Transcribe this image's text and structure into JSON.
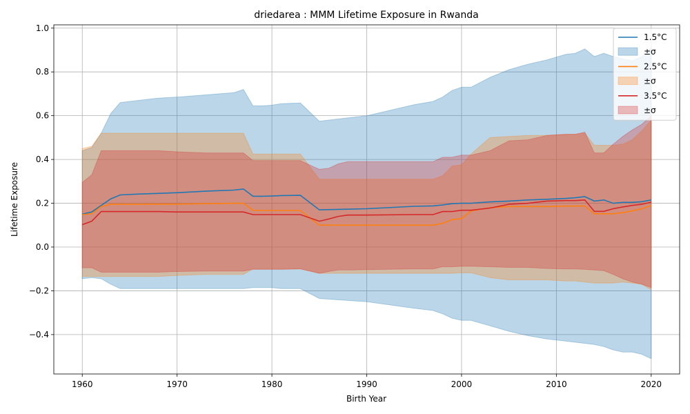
{
  "chart_data": {
    "type": "line",
    "title": "driedarea : MMM Lifetime Exposure in Rwanda",
    "xlabel": "Birth Year",
    "ylabel": "Lifetime Exposure",
    "xlim": [
      1957,
      2023
    ],
    "ylim": [
      -0.58,
      1.015
    ],
    "xticks": [
      1960,
      1970,
      1980,
      1990,
      2000,
      2010,
      2020
    ],
    "yticks": [
      -0.4,
      -0.2,
      0.0,
      0.2,
      0.4,
      0.6,
      0.8,
      1.0
    ],
    "xtick_labels": [
      "1960",
      "1970",
      "1980",
      "1990",
      "2000",
      "2010",
      "2020"
    ],
    "ytick_labels": [
      "−0.4",
      "−0.2",
      "0.0",
      "0.2",
      "0.4",
      "0.6",
      "0.8",
      "1.0"
    ],
    "grid": true,
    "legend_position": "top-right",
    "series": [
      {
        "name": "1.5°C",
        "band_name": "±σ",
        "color": "#1f77b4",
        "x": [
          1960,
          1961,
          1962,
          1963,
          1964,
          1966,
          1968,
          1970,
          1973,
          1976,
          1977,
          1978,
          1979,
          1980,
          1981,
          1983,
          1985,
          1990,
          1995,
          1997,
          1998,
          1999,
          2000,
          2001,
          2003,
          2005,
          2007,
          2009,
          2011,
          2012,
          2013,
          2014,
          2015,
          2016,
          2017,
          2018,
          2019,
          2020
        ],
        "y": [
          0.15,
          0.16,
          0.19,
          0.22,
          0.238,
          0.242,
          0.245,
          0.248,
          0.255,
          0.26,
          0.265,
          0.232,
          0.232,
          0.233,
          0.235,
          0.236,
          0.17,
          0.175,
          0.186,
          0.188,
          0.192,
          0.198,
          0.2,
          0.2,
          0.206,
          0.21,
          0.215,
          0.218,
          0.222,
          0.225,
          0.23,
          0.21,
          0.215,
          0.2,
          0.204,
          0.204,
          0.207,
          0.215
        ],
        "upper": [
          0.44,
          0.455,
          0.52,
          0.61,
          0.66,
          0.67,
          0.68,
          0.685,
          0.695,
          0.705,
          0.72,
          0.645,
          0.645,
          0.648,
          0.655,
          0.658,
          0.575,
          0.6,
          0.65,
          0.665,
          0.685,
          0.715,
          0.73,
          0.73,
          0.775,
          0.81,
          0.835,
          0.855,
          0.88,
          0.885,
          0.905,
          0.87,
          0.885,
          0.87,
          0.86,
          0.85,
          0.87,
          0.91
        ],
        "lower": [
          -0.145,
          -0.14,
          -0.145,
          -0.17,
          -0.19,
          -0.19,
          -0.19,
          -0.19,
          -0.19,
          -0.19,
          -0.19,
          -0.185,
          -0.185,
          -0.185,
          -0.19,
          -0.19,
          -0.235,
          -0.25,
          -0.28,
          -0.29,
          -0.305,
          -0.325,
          -0.335,
          -0.335,
          -0.36,
          -0.385,
          -0.405,
          -0.42,
          -0.43,
          -0.435,
          -0.44,
          -0.445,
          -0.455,
          -0.47,
          -0.48,
          -0.48,
          -0.49,
          -0.51
        ]
      },
      {
        "name": "2.5°C",
        "band_name": "±σ",
        "color": "#ff7f0e",
        "x": [
          1960,
          1961,
          1962,
          1963,
          1964,
          1966,
          1968,
          1970,
          1973,
          1976,
          1977,
          1978,
          1979,
          1980,
          1981,
          1983,
          1985,
          1990,
          1995,
          1997,
          1998,
          1999,
          2000,
          2001,
          2003,
          2005,
          2007,
          2009,
          2011,
          2012,
          2013,
          2014,
          2015,
          2016,
          2017,
          2018,
          2019,
          2020
        ],
        "y": [
          0.148,
          0.152,
          0.185,
          0.195,
          0.195,
          0.195,
          0.196,
          0.196,
          0.198,
          0.2,
          0.2,
          0.168,
          0.167,
          0.167,
          0.167,
          0.167,
          0.1,
          0.1,
          0.1,
          0.1,
          0.108,
          0.125,
          0.13,
          0.165,
          0.18,
          0.185,
          0.185,
          0.185,
          0.187,
          0.187,
          0.188,
          0.152,
          0.152,
          0.152,
          0.157,
          0.165,
          0.175,
          0.19
        ],
        "upper": [
          0.45,
          0.46,
          0.52,
          0.52,
          0.52,
          0.52,
          0.52,
          0.52,
          0.52,
          0.52,
          0.52,
          0.425,
          0.425,
          0.425,
          0.425,
          0.425,
          0.31,
          0.31,
          0.31,
          0.31,
          0.325,
          0.37,
          0.375,
          0.425,
          0.5,
          0.505,
          0.51,
          0.51,
          0.515,
          0.515,
          0.52,
          0.465,
          0.465,
          0.465,
          0.47,
          0.49,
          0.53,
          0.58
        ],
        "lower": [
          -0.135,
          -0.135,
          -0.135,
          -0.135,
          -0.135,
          -0.135,
          -0.135,
          -0.13,
          -0.125,
          -0.125,
          -0.125,
          -0.1,
          -0.1,
          -0.1,
          -0.1,
          -0.1,
          -0.12,
          -0.12,
          -0.12,
          -0.12,
          -0.12,
          -0.12,
          -0.118,
          -0.118,
          -0.14,
          -0.15,
          -0.15,
          -0.15,
          -0.155,
          -0.155,
          -0.16,
          -0.165,
          -0.165,
          -0.165,
          -0.16,
          -0.165,
          -0.17,
          -0.195
        ]
      },
      {
        "name": "3.5°C",
        "band_name": "±σ",
        "color": "#d62728",
        "x": [
          1960,
          1961,
          1962,
          1963,
          1964,
          1966,
          1968,
          1970,
          1973,
          1976,
          1977,
          1978,
          1979,
          1980,
          1981,
          1983,
          1985,
          1986,
          1987,
          1988,
          1990,
          1995,
          1997,
          1998,
          1999,
          2000,
          2001,
          2003,
          2005,
          2007,
          2009,
          2011,
          2012,
          2013,
          2014,
          2015,
          2016,
          2017,
          2018,
          2019,
          2020
        ],
        "y": [
          0.102,
          0.118,
          0.162,
          0.162,
          0.162,
          0.162,
          0.162,
          0.16,
          0.16,
          0.16,
          0.16,
          0.148,
          0.148,
          0.148,
          0.148,
          0.148,
          0.118,
          0.128,
          0.14,
          0.146,
          0.146,
          0.148,
          0.148,
          0.162,
          0.162,
          0.168,
          0.168,
          0.178,
          0.195,
          0.2,
          0.21,
          0.212,
          0.212,
          0.215,
          0.163,
          0.163,
          0.175,
          0.183,
          0.19,
          0.195,
          0.205
        ],
        "upper": [
          0.295,
          0.33,
          0.44,
          0.44,
          0.44,
          0.44,
          0.44,
          0.435,
          0.43,
          0.43,
          0.43,
          0.395,
          0.395,
          0.395,
          0.395,
          0.395,
          0.355,
          0.36,
          0.38,
          0.39,
          0.39,
          0.39,
          0.39,
          0.41,
          0.41,
          0.42,
          0.42,
          0.44,
          0.485,
          0.49,
          0.51,
          0.515,
          0.515,
          0.525,
          0.43,
          0.43,
          0.47,
          0.505,
          0.535,
          0.56,
          0.6
        ],
        "lower": [
          -0.095,
          -0.095,
          -0.115,
          -0.115,
          -0.115,
          -0.115,
          -0.115,
          -0.112,
          -0.11,
          -0.11,
          -0.11,
          -0.102,
          -0.102,
          -0.102,
          -0.102,
          -0.1,
          -0.12,
          -0.112,
          -0.105,
          -0.105,
          -0.103,
          -0.1,
          -0.1,
          -0.09,
          -0.09,
          -0.088,
          -0.088,
          -0.09,
          -0.093,
          -0.093,
          -0.098,
          -0.1,
          -0.1,
          -0.102,
          -0.105,
          -0.108,
          -0.125,
          -0.145,
          -0.16,
          -0.17,
          -0.185
        ]
      }
    ]
  }
}
